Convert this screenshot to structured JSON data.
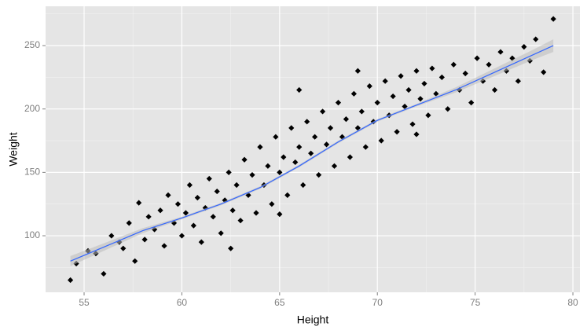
{
  "chart_data": {
    "type": "scatter",
    "x_label": "Height",
    "y_label": "Weight",
    "xlim": [
      53.03,
      80.36
    ],
    "ylim": [
      55.4,
      281
    ],
    "xticks": [
      55,
      60,
      65,
      70,
      75,
      80
    ],
    "yticks": [
      100,
      150,
      200,
      250
    ],
    "grid": true,
    "points": {
      "color": "#000000",
      "x": [
        54.3,
        54.6,
        55.2,
        55.6,
        56,
        56.4,
        56.8,
        57,
        57.3,
        57.6,
        57.8,
        58.1,
        58.3,
        58.6,
        58.9,
        59.1,
        59.3,
        59.6,
        59.8,
        60,
        60.2,
        60.4,
        60.6,
        60.8,
        61,
        61.2,
        61.4,
        61.6,
        61.8,
        62,
        62.2,
        62.4,
        62.6,
        62.8,
        63,
        63.2,
        63.4,
        63.6,
        63.8,
        64,
        64.2,
        64.4,
        64.6,
        64.8,
        65,
        65.2,
        65.4,
        65.6,
        65.8,
        66,
        66.2,
        66.4,
        66.6,
        66.8,
        67,
        67.2,
        67.4,
        67.6,
        67.8,
        68,
        68.2,
        68.4,
        68.6,
        68.8,
        69,
        69.2,
        69.4,
        69.6,
        69.8,
        70,
        70.2,
        70.4,
        70.6,
        70.8,
        71,
        71.2,
        71.4,
        71.6,
        71.8,
        72,
        72.2,
        72.4,
        72.6,
        72.8,
        73,
        73.3,
        73.6,
        73.9,
        74.2,
        74.5,
        74.8,
        75.1,
        75.4,
        75.7,
        76,
        76.3,
        76.6,
        76.9,
        77.2,
        77.5,
        77.8,
        78.1,
        78.5,
        79,
        65,
        62.5,
        69,
        66,
        72
      ],
      "y": [
        65,
        78,
        88,
        86,
        70,
        100,
        95,
        90,
        110,
        80,
        126,
        97,
        115,
        105,
        120,
        92,
        132,
        110,
        125,
        100,
        118,
        140,
        108,
        130,
        95,
        122,
        145,
        115,
        135,
        102,
        128,
        150,
        120,
        140,
        112,
        160,
        132,
        148,
        118,
        170,
        140,
        155,
        125,
        178,
        150,
        162,
        132,
        185,
        158,
        170,
        140,
        190,
        165,
        178,
        148,
        198,
        172,
        185,
        155,
        205,
        178,
        192,
        162,
        212,
        185,
        198,
        170,
        218,
        190,
        205,
        175,
        222,
        195,
        210,
        182,
        226,
        202,
        215,
        188,
        230,
        208,
        220,
        195,
        232,
        212,
        225,
        200,
        235,
        215,
        228,
        205,
        240,
        222,
        235,
        215,
        245,
        230,
        240,
        222,
        249,
        238,
        255,
        229,
        271,
        117,
        90,
        230,
        215,
        180
      ]
    },
    "smooth": {
      "color": "#3366ff",
      "band_color": "#bbbbbb",
      "x": [
        54.3,
        56,
        58,
        60,
        62,
        64,
        66,
        68,
        70,
        72,
        74,
        76,
        78,
        79
      ],
      "y": [
        80,
        91,
        104,
        114,
        125,
        138,
        155,
        174,
        191,
        203,
        215,
        229,
        243,
        250
      ],
      "lower": [
        76,
        88,
        102,
        113,
        124,
        137,
        154,
        173,
        190,
        202,
        213,
        226,
        239,
        245
      ],
      "upper": [
        84,
        94,
        106,
        115,
        126,
        139,
        156,
        175,
        192,
        204,
        217,
        232,
        247,
        255
      ]
    }
  }
}
